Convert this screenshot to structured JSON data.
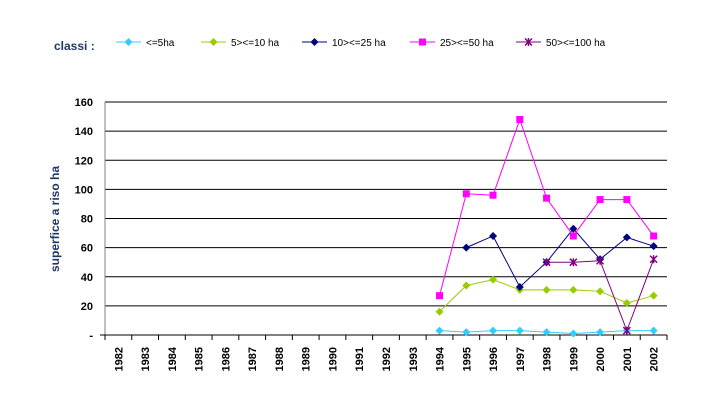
{
  "chart_data": {
    "type": "line",
    "legend_title": "classi :",
    "ylabel": "superfice a riso ha",
    "xlabel": "",
    "ylim": [
      0,
      160
    ],
    "yticks": [
      {
        "value": 0,
        "label": "-"
      },
      {
        "value": 20,
        "label": "20"
      },
      {
        "value": 40,
        "label": "40"
      },
      {
        "value": 60,
        "label": "60"
      },
      {
        "value": 80,
        "label": "80"
      },
      {
        "value": 100,
        "label": "100"
      },
      {
        "value": 120,
        "label": "120"
      },
      {
        "value": 140,
        "label": "140"
      },
      {
        "value": 160,
        "label": "160"
      }
    ],
    "grid": "horizontal",
    "legend_position": "top",
    "categories": [
      "1982",
      "1983",
      "1984",
      "1985",
      "1986",
      "1987",
      "1988",
      "1989",
      "1990",
      "1991",
      "1992",
      "1993",
      "1994",
      "1995",
      "1996",
      "1997",
      "1998",
      "1999",
      "2000",
      "2001",
      "2002"
    ],
    "series": [
      {
        "name": "<=5ha",
        "color": "#33ccff",
        "marker": "diamond",
        "values": [
          null,
          null,
          null,
          null,
          null,
          null,
          null,
          null,
          null,
          null,
          null,
          null,
          3,
          2,
          3,
          3,
          2,
          1,
          2,
          3,
          3
        ]
      },
      {
        "name": "5><=10 ha",
        "color": "#99cc00",
        "marker": "diamond",
        "values": [
          null,
          null,
          null,
          null,
          null,
          null,
          null,
          null,
          null,
          null,
          null,
          null,
          16,
          34,
          38,
          31,
          31,
          31,
          30,
          22,
          27
        ]
      },
      {
        "name": "10><=25 ha",
        "color": "#000080",
        "marker": "diamond",
        "values": [
          null,
          null,
          null,
          null,
          null,
          null,
          null,
          null,
          null,
          null,
          null,
          null,
          null,
          60,
          68,
          33,
          50,
          73,
          52,
          67,
          61
        ]
      },
      {
        "name": "25><=50 ha",
        "color": "#ff00ff",
        "marker": "square",
        "values": [
          null,
          null,
          null,
          null,
          null,
          null,
          null,
          null,
          null,
          null,
          null,
          null,
          27,
          97,
          96,
          148,
          94,
          68,
          93,
          93,
          68
        ]
      },
      {
        "name": "50><=100 ha",
        "color": "#800080",
        "marker": "star",
        "values": [
          null,
          null,
          null,
          null,
          null,
          null,
          null,
          null,
          null,
          null,
          null,
          null,
          null,
          null,
          null,
          null,
          50,
          50,
          51,
          3,
          52
        ]
      }
    ]
  }
}
